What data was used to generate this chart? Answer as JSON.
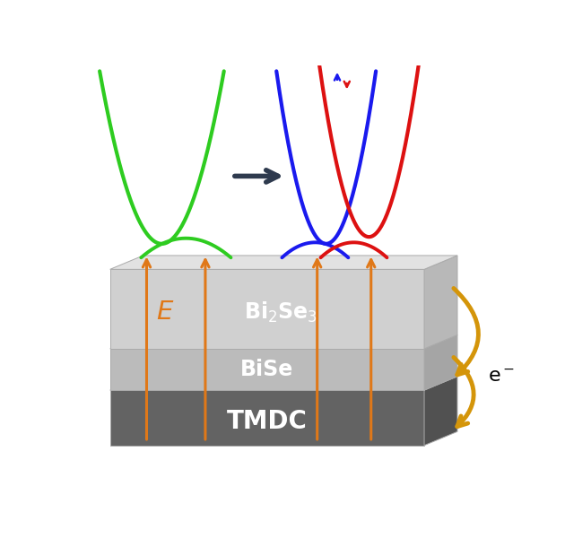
{
  "bg_color": "#ffffff",
  "green_color": "#2ecc20",
  "blue_color": "#1a1aee",
  "red_color": "#dd1111",
  "orange_color": "#e07818",
  "gold_color": "#d4950a",
  "arrow_color": "#2e3a4e",
  "bi2se3_front": "#d0d0d0",
  "bi2se3_top": "#e2e2e2",
  "bi2se3_side": "#b8b8b8",
  "bise_front": "#bbbbbb",
  "bise_top": "#d0d0d0",
  "bise_side": "#a5a5a5",
  "tmdc_front": "#636363",
  "tmdc_top": "#777777",
  "tmdc_side": "#515151",
  "white": "#ffffff",
  "black": "#000000"
}
